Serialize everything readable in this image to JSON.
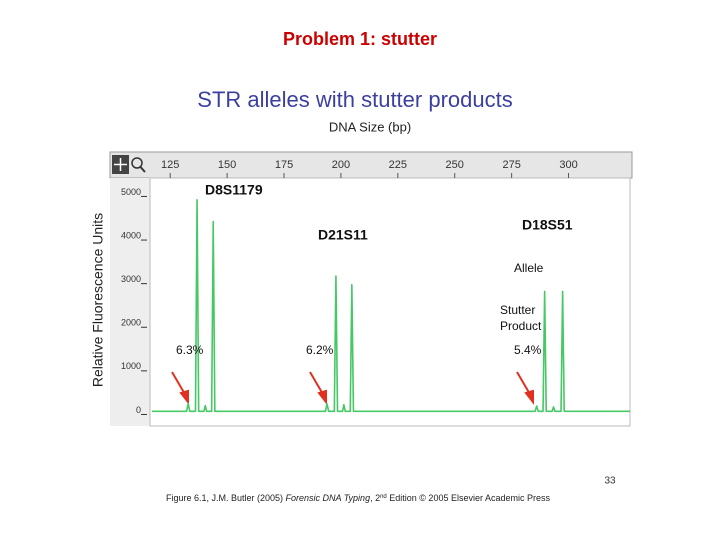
{
  "slide": {
    "title": "Problem 1: stutter",
    "page_number": "33",
    "caption": [
      "Figure 6.1, J.M. Butler (2005) ",
      "Forensic DNA Typing",
      ", 2",
      "nd",
      " Edition © 2005 Elsevier Academic Press"
    ]
  },
  "chart_data": {
    "type": "line",
    "title": "STR alleles with stutter products",
    "x_label": "DNA Size (bp)",
    "y_label": "Relative Fluorescence Units",
    "xlim": [
      117,
      327
    ],
    "xticks": [
      125,
      150,
      175,
      200,
      225,
      250,
      275,
      300
    ],
    "ylim": [
      -150,
      5400
    ],
    "yticks": [
      0,
      1000,
      2000,
      3000,
      4000,
      5000
    ],
    "annotations": [
      "D8S1179",
      "D21S11",
      "D18S51",
      "Allele",
      "Stutter",
      "Product",
      "6.3%",
      "6.2%",
      "5.4%"
    ],
    "series": [
      {
        "color": "#46c864",
        "x": [
          117,
          132.2,
          132.9,
          133.6,
          136.1,
          136.8,
          137.5,
          139.8,
          140.4,
          141.0,
          143.2,
          143.9,
          144.6,
          193.2,
          193.9,
          194.6,
          197.1,
          197.8,
          198.5,
          200.7,
          201.3,
          201.9,
          204.1,
          204.8,
          205.5,
          285.3,
          286.0,
          286.7,
          288.8,
          289.5,
          290.2,
          292.8,
          293.4,
          294.0,
          296.7,
          297.4,
          298.1,
          327
        ],
        "values": [
          50,
          50,
          230,
          50,
          50,
          4900,
          50,
          50,
          180,
          50,
          50,
          4400,
          50,
          50,
          220,
          50,
          50,
          3150,
          50,
          50,
          200,
          50,
          50,
          2950,
          50,
          50,
          170,
          50,
          50,
          2800,
          50,
          50,
          150,
          50,
          50,
          2800,
          50,
          50
        ]
      }
    ]
  }
}
